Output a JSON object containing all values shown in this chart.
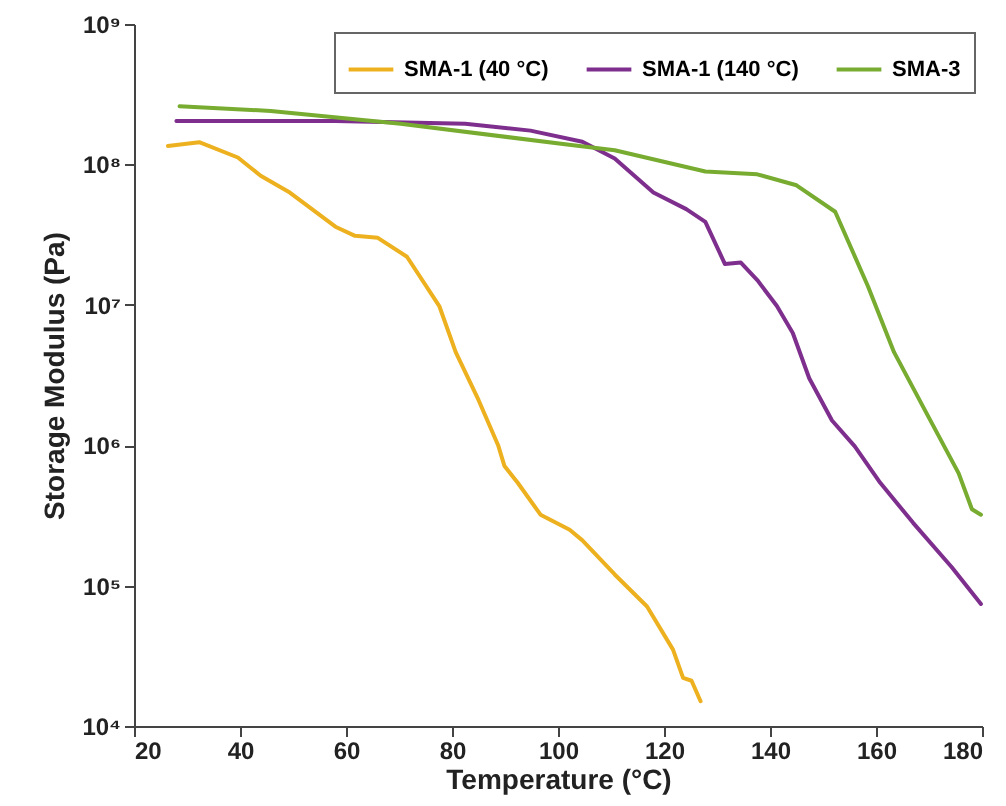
{
  "chart_data": {
    "type": "line",
    "xlabel": "Temperature (°C)",
    "ylabel": "Storage Modulus (Pa)",
    "log": "y",
    "xlim": [
      20,
      180
    ],
    "xticks": [
      20,
      40,
      60,
      80,
      100,
      120,
      140,
      160,
      180
    ],
    "ylim": [
      10000,
      1000000000
    ],
    "yticks": [
      {
        "value": 10000,
        "label": "10⁴"
      },
      {
        "value": 100000,
        "label": "10⁵"
      },
      {
        "value": 1000000,
        "label": "10⁶"
      },
      {
        "value": 10000000,
        "label": "10⁷"
      },
      {
        "value": 100000000,
        "label": "10⁸"
      },
      {
        "value": 1000000000,
        "label": "10⁹"
      }
    ],
    "grid": false,
    "legend": "top right",
    "line_style": "solid",
    "marker": "none",
    "series": [
      {
        "name": "SMA-1 (40 °C)",
        "color": "#edb120",
        "x": [
          26.4,
          32.3,
          39.6,
          43.9,
          49.4,
          58,
          61.7,
          66,
          71.5,
          77.6,
          80.7,
          85,
          88.7,
          89.9,
          92.4,
          96.7,
          102.2,
          104.6,
          110.7,
          116.8,
          121.7,
          123.6,
          125.2,
          126.9
        ],
        "values": [
          135000000,
          144000000,
          112000000,
          83000000,
          63000000,
          36000000,
          31000000,
          30000000,
          22000000,
          9800000,
          4600000,
          2100000,
          1000000,
          710000,
          540000,
          320000,
          250000,
          210000,
          120000,
          71000,
          35000,
          22000,
          21000,
          15000
        ]
      },
      {
        "name": "SMA-1 (140 °C)",
        "color": "#7e2f8e",
        "x": [
          28,
          58,
          82.5,
          94.8,
          104.6,
          110.7,
          118,
          124.2,
          127.8,
          131.5,
          134.5,
          137.6,
          141.3,
          144.3,
          147.4,
          151.7,
          156,
          160.8,
          167,
          174.3,
          179.8
        ],
        "values": [
          204000000,
          204000000,
          195000000,
          174000000,
          145000000,
          110000000,
          63000000,
          48000000,
          39000000,
          19500000,
          20000000,
          15000000,
          9800000,
          6300000,
          3000000,
          1500000,
          980000,
          540000,
          280000,
          135000,
          74000
        ]
      },
      {
        "name": "SMA-3",
        "color": "#77ac30",
        "x": [
          28.6,
          45.8,
          70.3,
          102.1,
          110.7,
          127.8,
          137.6,
          145,
          152.3,
          158.5,
          163.4,
          169.5,
          175.6,
          178.1,
          179.8
        ],
        "values": [
          260000000,
          240000000,
          195000000,
          138000000,
          126000000,
          89000000,
          85000000,
          71000000,
          46000000,
          13500000,
          4600000,
          1700000,
          630000,
          350000,
          320000
        ]
      }
    ]
  }
}
